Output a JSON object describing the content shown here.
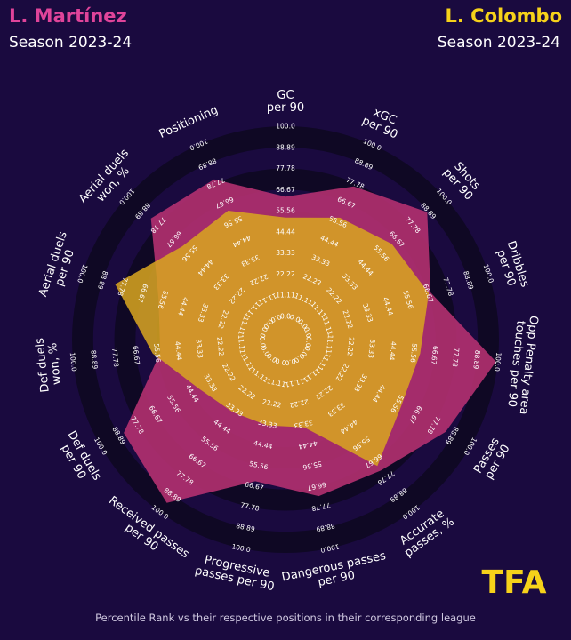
{
  "players": [
    {
      "name": "L. Martínez",
      "season": "Season 2023-24",
      "color": "#e0449a"
    },
    {
      "name": "L. Colombo",
      "season": "Season 2023-24",
      "color": "#f6d21a"
    }
  ],
  "chart_data": {
    "type": "radar",
    "metrics": [
      "GC\nper 90",
      "xGC\nper 90",
      "Shots\nper 90",
      "Dribbles\nper 90",
      "Opp Penalty area\ntouches per 90",
      "Passes\nper 90",
      "Accurate\npasses, %",
      "Dangerous passes\nper 90",
      "Progressive\npasses per 90",
      "Received passes\nper 90",
      "Def duels\nper 90",
      "Def duels\nwon, %",
      "Aerial duels\nper 90",
      "Aerial duels\nwon, %",
      "Positioning"
    ],
    "scale_labels": [
      "0.0",
      "11.11",
      "22.22",
      "33.33",
      "44.44",
      "55.56",
      "66.67",
      "77.78",
      "88.89",
      "100.0"
    ],
    "range": [
      0,
      100
    ],
    "series": [
      {
        "name": "L. Martínez",
        "values": [
          63,
          76,
          88,
          68,
          99,
          85,
          73,
          72,
          64,
          94,
          86,
          54,
          58,
          83,
          80
        ]
      },
      {
        "name": "L. Colombo",
        "values": [
          52,
          58,
          63,
          67,
          59,
          58,
          70,
          35,
          34,
          35,
          40,
          58,
          82,
          61,
          62
        ]
      }
    ]
  },
  "footnote": "Percentile Rank vs their respective positions in their corresponding league",
  "logo_text": "TFA",
  "colors": {
    "background": "#1a0a3f",
    "ring_dark": "#0f0824",
    "player1_fill": "#b0306f",
    "player2_fill": "#d9a520",
    "logo": "#f6d21a"
  }
}
